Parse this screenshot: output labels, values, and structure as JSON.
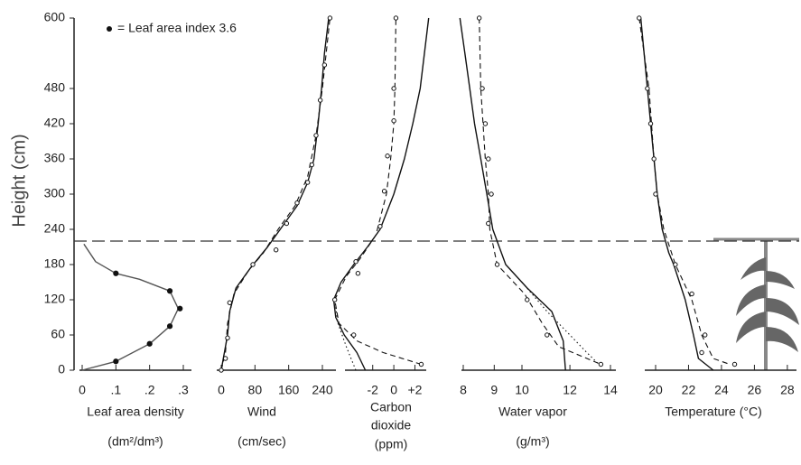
{
  "chart_data": {
    "type": "line",
    "y_label": "Height (cm)",
    "ylim": [
      0,
      600
    ],
    "yticks": [
      0,
      60,
      120,
      180,
      240,
      300,
      360,
      420,
      480,
      600
    ],
    "annotation": "= Leaf area index 3.6",
    "hline": 220,
    "panels": [
      {
        "x_label": [
          "Leaf area density",
          "(dm²/dm³)"
        ],
        "xlim": [
          0,
          0.3
        ],
        "xticks": [
          0,
          {
            "value": 0.1,
            "label": ".1"
          },
          {
            "value": 0.2,
            "label": ".2"
          },
          {
            "value": 0.3,
            "label": ".3"
          }
        ],
        "series": [
          {
            "style": "solid",
            "color": "#555555",
            "x": [
              0,
              0.1,
              0.2,
              0.26,
              0.285,
              0.26,
              0.17,
              0.1,
              0.04,
              0.005
            ],
            "y": [
              0,
              15,
              45,
              75,
              105,
              135,
              155,
              165,
              185,
              215
            ]
          },
          {
            "style": "dots",
            "color": "#111111",
            "x": [
              0.1,
              0.2,
              0.26,
              0.29,
              0.26,
              0.1
            ],
            "y": [
              15,
              45,
              75,
              105,
              135,
              165
            ]
          }
        ]
      },
      {
        "x_label": [
          "Wind",
          "(cm/sec)"
        ],
        "xlim": [
          0,
          240
        ],
        "xticks": [
          0,
          80,
          160,
          240
        ],
        "series": [
          {
            "style": "solid",
            "color": "#111111",
            "x": [
              0,
              5,
              15,
              20,
              35,
              70,
              110,
              140,
              180,
              205,
              220,
              230,
              238,
              245,
              255
            ],
            "y": [
              0,
              20,
              60,
              100,
              140,
              175,
              210,
              240,
              280,
              320,
              360,
              420,
              480,
              540,
              600
            ]
          },
          {
            "style": "dashed",
            "color": "#111111",
            "x": [
              0,
              10,
              15,
              30,
              65,
              100,
              135,
              175,
              205,
              225,
              240,
              258
            ],
            "y": [
              0,
              30,
              80,
              130,
              170,
              200,
              240,
              280,
              330,
              400,
              480,
              600
            ]
          },
          {
            "style": "points",
            "color": "#111111",
            "x": [
              0,
              10,
              15,
              20,
              75,
              130,
              155,
              180,
              205,
              215,
              225,
              235,
              245,
              258
            ],
            "y": [
              0,
              20,
              55,
              115,
              180,
              205,
              250,
              285,
              320,
              350,
              400,
              460,
              520,
              600
            ]
          }
        ]
      },
      {
        "x_label": [
          "Carbon",
          "dioxide",
          "(ppm)"
        ],
        "xlim": [
          -6,
          3.5
        ],
        "xticks": [
          -2,
          0,
          {
            "value": 2,
            "label": "+2"
          }
        ],
        "series": [
          {
            "style": "solid",
            "color": "#111111",
            "x": [
              -2.7,
              -3.5,
              -4.7,
              -5.5,
              -5.7,
              -5,
              -3.8,
              -2.5,
              -1.3,
              0,
              1,
              1.8,
              2.5,
              3.3
            ],
            "y": [
              0,
              30,
              60,
              90,
              120,
              150,
              180,
              210,
              240,
              300,
              360,
              420,
              480,
              600
            ]
          },
          {
            "style": "dashed",
            "color": "#111111",
            "x": [
              2.6,
              -1,
              -3.5,
              -5.2,
              -5.6,
              -4.5,
              -3.2,
              -1.7,
              -0.7,
              -0.3,
              0,
              0.1,
              0.2
            ],
            "y": [
              10,
              30,
              50,
              80,
              120,
              160,
              190,
              230,
              300,
              360,
              420,
              480,
              600
            ]
          },
          {
            "style": "dotted",
            "color": "#111111",
            "x": [
              -3.6,
              -4.5,
              -5.3,
              -5.6
            ],
            "y": [
              0,
              40,
              80,
              120
            ]
          },
          {
            "style": "points",
            "color": "#111111",
            "x": [
              2.6,
              -3.8,
              -5.6,
              -3.4,
              -3.6,
              -1.3,
              -0.9,
              -0.6,
              0,
              0,
              0.2
            ],
            "y": [
              10,
              60,
              120,
              165,
              185,
              245,
              305,
              365,
              425,
              480,
              600
            ]
          }
        ]
      },
      {
        "x_label": [
          "Water vapor",
          "(g/m³)"
        ],
        "xlim": [
          8,
          14
        ],
        "xscale": "log",
        "xticks": [
          8,
          9,
          10,
          12,
          14
        ],
        "series": [
          {
            "style": "solid",
            "color": "#111111",
            "x": [
              7.9,
              8.05,
              8.2,
              8.35,
              8.55,
              8.75,
              8.95,
              9.4,
              10.2,
              11.2,
              11.7,
              11.8
            ],
            "y": [
              600,
              540,
              480,
              420,
              360,
              300,
              240,
              180,
              140,
              100,
              50,
              0
            ]
          },
          {
            "style": "dashed",
            "color": "#111111",
            "x": [
              8.5,
              8.55,
              8.7,
              8.8,
              8.85,
              9.1,
              10.1,
              10.8,
              11.5,
              12.8,
              13.5
            ],
            "y": [
              600,
              480,
              360,
              300,
              240,
              180,
              130,
              80,
              40,
              20,
              10
            ]
          },
          {
            "style": "dotted",
            "color": "#111111",
            "x": [
              10,
              11,
              12,
              12.8,
              13.4
            ],
            "y": [
              150,
              100,
              60,
              30,
              10
            ]
          },
          {
            "style": "points",
            "color": "#111111",
            "x": [
              8.5,
              8.6,
              8.7,
              8.8,
              8.9,
              8.8,
              9.1,
              10.2,
              11,
              13.5
            ],
            "y": [
              600,
              480,
              420,
              360,
              300,
              250,
              180,
              120,
              60,
              10
            ]
          }
        ]
      },
      {
        "x_label": [
          "Temperature (°C)"
        ],
        "xlim": [
          19,
          28.5
        ],
        "xticks": [
          20,
          22,
          24,
          26,
          28
        ],
        "series": [
          {
            "style": "solid",
            "color": "#111111",
            "x": [
              19.1,
              19.5,
              19.7,
              19.9,
              20.1,
              20.4,
              20.8,
              21.1,
              21.8,
              22.3,
              22.6,
              23.5
            ],
            "y": [
              600,
              480,
              420,
              360,
              300,
              240,
              200,
              180,
              120,
              60,
              20,
              0
            ]
          },
          {
            "style": "dashed",
            "color": "#111111",
            "x": [
              19,
              19.6,
              19.9,
              20.1,
              20.5,
              21.2,
              22.2,
              22.8,
              23.5,
              24.5
            ],
            "y": [
              600,
              480,
              360,
              300,
              240,
              180,
              120,
              60,
              20,
              10
            ]
          },
          {
            "style": "points",
            "color": "#111111",
            "x": [
              19,
              19.5,
              19.7,
              19.9,
              20,
              21.2,
              22.2,
              23,
              22.8,
              24.8
            ],
            "y": [
              600,
              480,
              420,
              360,
              300,
              180,
              130,
              60,
              30,
              10
            ]
          }
        ]
      }
    ]
  }
}
